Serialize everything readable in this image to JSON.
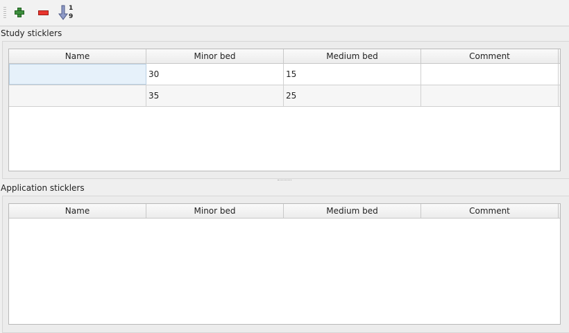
{
  "toolbar": {
    "add": "add-icon",
    "remove": "remove-icon",
    "sort": "sort-ascending-icon",
    "sort_top": "1",
    "sort_bottom": "9"
  },
  "study": {
    "title": "Study sticklers",
    "columns": [
      "Name",
      "Minor bed",
      "Medium bed",
      "Comment"
    ],
    "rows": [
      [
        "",
        "30",
        "15",
        ""
      ],
      [
        "",
        "35",
        "25",
        ""
      ]
    ]
  },
  "application": {
    "title": "Application sticklers",
    "columns": [
      "Name",
      "Minor bed",
      "Medium bed",
      "Comment"
    ],
    "rows": []
  }
}
